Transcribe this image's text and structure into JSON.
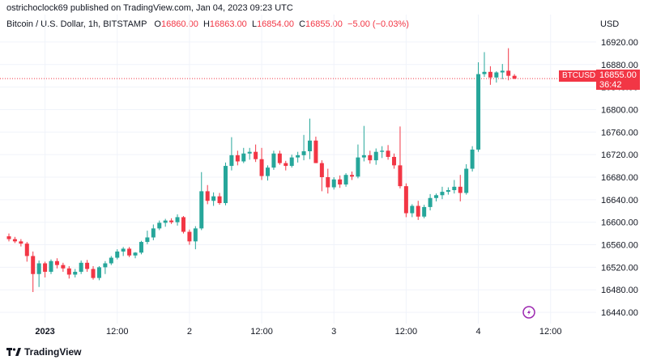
{
  "header": {
    "publisher": "ostrichoclock69 published on TradingView.com, Jan 04, 2023 09:23 UTC",
    "symbol": "Bitcoin / U.S. Dollar, 1h, BITSTAMP",
    "o_label": "O",
    "o_value": "16860.00",
    "h_label": "H",
    "h_value": "16863.00",
    "l_label": "L",
    "l_value": "16854.00",
    "c_label": "C",
    "c_value": "16855.00",
    "change": "−5.00 (−0.03%)",
    "currency": "USD"
  },
  "price_tag": {
    "symbol": "BTCUSD",
    "price": "16855.00",
    "countdown": "36:42"
  },
  "footer": {
    "brand": "TradingView"
  },
  "colors": {
    "up": "#26a69a",
    "down": "#f23645",
    "grid": "#f0f3fa",
    "text": "#131722",
    "accent": "#9c27b0"
  },
  "chart_data": {
    "type": "candlestick",
    "ylim": [
      16420,
      16940
    ],
    "yticks": [
      16920,
      16880,
      16840,
      16800,
      16760,
      16720,
      16680,
      16640,
      16600,
      16560,
      16520,
      16480,
      16440
    ],
    "ytick_labels": [
      "16920.00",
      "16880.00",
      "16840.00",
      "16800.00",
      "16760.00",
      "16720.00",
      "16680.00",
      "16640.00",
      "16600.00",
      "16560.00",
      "16520.00",
      "16480.00",
      "16440.00"
    ],
    "xticks": [
      {
        "index": 6,
        "label": "2023"
      },
      {
        "index": 18,
        "label": "12:00"
      },
      {
        "index": 30,
        "label": "2"
      },
      {
        "index": 42,
        "label": "12:00"
      },
      {
        "index": 54,
        "label": "3"
      },
      {
        "index": 66,
        "label": "12:00"
      },
      {
        "index": 78,
        "label": "4"
      },
      {
        "index": 90,
        "label": "12:00"
      }
    ],
    "last_price": 16855,
    "candles": [
      [
        16575,
        16580,
        16566,
        16570
      ],
      [
        16570,
        16574,
        16563,
        16566
      ],
      [
        16566,
        16570,
        16557,
        16562
      ],
      [
        16562,
        16565,
        16530,
        16540
      ],
      [
        16540,
        16548,
        16476,
        16508
      ],
      [
        16508,
        16532,
        16485,
        16527
      ],
      [
        16527,
        16530,
        16502,
        16512
      ],
      [
        16512,
        16534,
        16508,
        16531
      ],
      [
        16531,
        16536,
        16518,
        16524
      ],
      [
        16524,
        16528,
        16512,
        16518
      ],
      [
        16518,
        16522,
        16500,
        16507
      ],
      [
        16507,
        16517,
        16502,
        16512
      ],
      [
        16512,
        16532,
        16508,
        16528
      ],
      [
        16528,
        16533,
        16512,
        16517
      ],
      [
        16517,
        16522,
        16498,
        16501
      ],
      [
        16501,
        16522,
        16497,
        16520
      ],
      [
        16520,
        16531,
        16508,
        16527
      ],
      [
        16527,
        16540,
        16524,
        16537
      ],
      [
        16537,
        16552,
        16534,
        16548
      ],
      [
        16548,
        16556,
        16540,
        16553
      ],
      [
        16553,
        16556,
        16538,
        16541
      ],
      [
        16541,
        16547,
        16536,
        16546
      ],
      [
        16546,
        16567,
        16543,
        16565
      ],
      [
        16565,
        16585,
        16561,
        16573
      ],
      [
        16573,
        16596,
        16568,
        16589
      ],
      [
        16589,
        16603,
        16586,
        16599
      ],
      [
        16599,
        16606,
        16592,
        16603
      ],
      [
        16603,
        16607,
        16597,
        16600
      ],
      [
        16600,
        16614,
        16594,
        16609
      ],
      [
        16609,
        16611,
        16580,
        16583
      ],
      [
        16583,
        16587,
        16560,
        16566
      ],
      [
        16566,
        16593,
        16552,
        16589
      ],
      [
        16589,
        16689,
        16586,
        16655
      ],
      [
        16655,
        16666,
        16632,
        16638
      ],
      [
        16638,
        16653,
        16629,
        16646
      ],
      [
        16646,
        16652,
        16631,
        16634
      ],
      [
        16634,
        16706,
        16630,
        16700
      ],
      [
        16700,
        16751,
        16692,
        16719
      ],
      [
        16719,
        16727,
        16701,
        16708
      ],
      [
        16708,
        16732,
        16705,
        16722
      ],
      [
        16722,
        16732,
        16711,
        16725
      ],
      [
        16725,
        16738,
        16707,
        16712
      ],
      [
        16712,
        16732,
        16675,
        16682
      ],
      [
        16682,
        16701,
        16674,
        16697
      ],
      [
        16697,
        16727,
        16693,
        16722
      ],
      [
        16722,
        16727,
        16702,
        16705
      ],
      [
        16705,
        16709,
        16692,
        16700
      ],
      [
        16700,
        16720,
        16697,
        16715
      ],
      [
        16715,
        16725,
        16706,
        16719
      ],
      [
        16719,
        16755,
        16710,
        16726
      ],
      [
        16726,
        16784,
        16712,
        16745
      ],
      [
        16745,
        16752,
        16705,
        16705
      ],
      [
        16705,
        16710,
        16655,
        16680
      ],
      [
        16680,
        16695,
        16651,
        16662
      ],
      [
        16662,
        16680,
        16658,
        16676
      ],
      [
        16676,
        16683,
        16661,
        16667
      ],
      [
        16667,
        16687,
        16663,
        16684
      ],
      [
        16684,
        16690,
        16675,
        16681
      ],
      [
        16681,
        16738,
        16678,
        16715
      ],
      [
        16715,
        16771,
        16708,
        16719
      ],
      [
        16719,
        16727,
        16704,
        16710
      ],
      [
        16710,
        16731,
        16702,
        16725
      ],
      [
        16725,
        16735,
        16714,
        16727
      ],
      [
        16727,
        16737,
        16711,
        16716
      ],
      [
        16716,
        16722,
        16695,
        16701
      ],
      [
        16701,
        16770,
        16660,
        16664
      ],
      [
        16664,
        16669,
        16609,
        16616
      ],
      [
        16616,
        16632,
        16609,
        16629
      ],
      [
        16629,
        16638,
        16604,
        16610
      ],
      [
        16610,
        16631,
        16607,
        16627
      ],
      [
        16627,
        16650,
        16621,
        16643
      ],
      [
        16643,
        16651,
        16637,
        16648
      ],
      [
        16648,
        16663,
        16641,
        16654
      ],
      [
        16654,
        16662,
        16649,
        16657
      ],
      [
        16657,
        16675,
        16651,
        16663
      ],
      [
        16663,
        16684,
        16637,
        16652
      ],
      [
        16652,
        16703,
        16649,
        16695
      ],
      [
        16695,
        16735,
        16690,
        16729
      ],
      [
        16729,
        16884,
        16725,
        16863
      ],
      [
        16863,
        16902,
        16858,
        16867
      ],
      [
        16867,
        16877,
        16844,
        16857
      ],
      [
        16857,
        16868,
        16848,
        16866
      ],
      [
        16866,
        16881,
        16854,
        16869
      ],
      [
        16869,
        16909,
        16852,
        16860
      ],
      [
        16860,
        16863,
        16854,
        16855
      ]
    ]
  }
}
